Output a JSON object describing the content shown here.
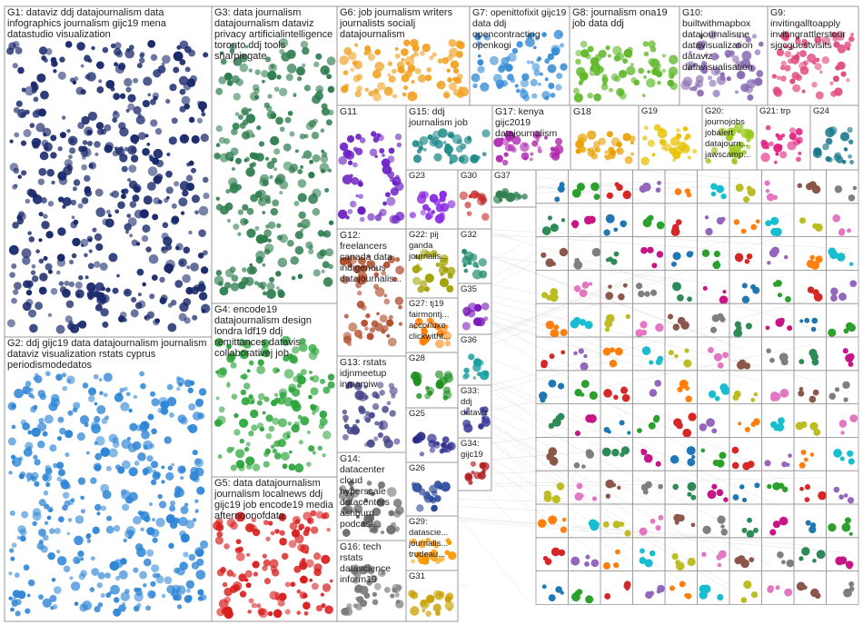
{
  "graph": {
    "groups": [
      {
        "id": "G1",
        "title": "G1: dataviz ddj datajournalism data infographics journalism gijc19 mena datastudio visualization",
        "color": "#1a2a6c"
      },
      {
        "id": "G2",
        "title": "G2: ddj gijc19 data datajournalism journalism dataviz visualization rstats cyprus periodismodedatos",
        "color": "#2f86d6"
      },
      {
        "id": "G3",
        "title": "G3: data journalism datajournalism dataviz privacy artificialintelligence toronto ddj tools sharpiegate",
        "color": "#2e7d4f"
      },
      {
        "id": "G4",
        "title": "G4: encode19 datajournalism design londra ldf19 ddj remittances datavis collaborativej job",
        "color": "#2aa43a"
      },
      {
        "id": "G5",
        "title": "G5: data datajournalism journalism localnews ddj gijc19 job encode19 media afternoonofdata",
        "color": "#d81e1e"
      },
      {
        "id": "G6",
        "title": "G6: job journalism writers journalists socialj datajournalism",
        "color": "#f0a020"
      },
      {
        "id": "G7",
        "title": "G7: openittofixit gijc19 data ddj opencontracting openkogi",
        "color": "#3a8fd8"
      },
      {
        "id": "G8",
        "title": "G8: journalism ona19 job data ddj",
        "color": "#5fb82a"
      },
      {
        "id": "G9",
        "title": "G9: invitingalltoapply invitingrattlerstour sjgcguestvisits",
        "color": "#e0457b"
      },
      {
        "id": "G10",
        "title": "G10: builtwithmapbox datajournalisme datavisualization dataviz datavisualisation",
        "color": "#8a6db5"
      },
      {
        "id": "G11",
        "title": "G11",
        "color": "#6a1fc2"
      },
      {
        "id": "G12",
        "title": "G12: freelancers canada data indigenous datajournalis...",
        "color": "#b05030"
      },
      {
        "id": "G13",
        "title": "G13: rstats idjnmeetup inmamiw",
        "color": "#444488"
      },
      {
        "id": "G14",
        "title": "G14: datacenter cloud hyperscale datacenters ashburn podcast...",
        "color": "#666"
      },
      {
        "id": "G15",
        "title": "G15: ddj journalism job",
        "color": "#1f8a8a"
      },
      {
        "id": "G16",
        "title": "G16: tech rstats datascience inform19",
        "color": "#777"
      },
      {
        "id": "G17",
        "title": "G17: kenya gijc2019 datajournalism",
        "color": "#b02ab0"
      },
      {
        "id": "G18",
        "title": "G18",
        "color": "#e8a000"
      },
      {
        "id": "G19",
        "title": "G19",
        "color": "#e8c000"
      },
      {
        "id": "G20",
        "title": "G20: journojobs jobalert datajourn... jawscamp...",
        "color": "#9ac81e"
      },
      {
        "id": "G21",
        "title": "G21: trp",
        "color": "#e02080"
      },
      {
        "id": "G22",
        "title": "G22: pij ganda journalis...",
        "color": "#a0a000"
      },
      {
        "id": "G23",
        "title": "G23",
        "color": "#8a2be2"
      },
      {
        "id": "G24",
        "title": "G24",
        "color": "#1a7a8a"
      },
      {
        "id": "G25",
        "title": "G25",
        "color": "#2a2a8a"
      },
      {
        "id": "G26",
        "title": "G26",
        "color": "#2a4a9a"
      },
      {
        "id": "G27",
        "title": "G27: tj19 fairmontj... accorluxe clickwitht...",
        "color": "#ff7f00"
      },
      {
        "id": "G28",
        "title": "G28",
        "color": "#209020"
      },
      {
        "id": "G29",
        "title": "G29: datascie... journalis... trudeau...",
        "color": "#ff9900"
      },
      {
        "id": "G30",
        "title": "G30",
        "color": "#c83030"
      },
      {
        "id": "G31",
        "title": "G31",
        "color": "#c8a000"
      },
      {
        "id": "G32",
        "title": "G32",
        "color": "#1a8a6a"
      },
      {
        "id": "G33",
        "title": "G33: ddj dataviz",
        "color": "#3a3a9a"
      },
      {
        "id": "G34",
        "title": "G34: gijc19",
        "color": "#b02020"
      },
      {
        "id": "G35",
        "title": "G35",
        "color": "#7a1ab8"
      },
      {
        "id": "G36",
        "title": "G36",
        "color": "#1aa0a0"
      },
      {
        "id": "G37",
        "title": "G37",
        "color": "#2e7d4f"
      }
    ]
  }
}
